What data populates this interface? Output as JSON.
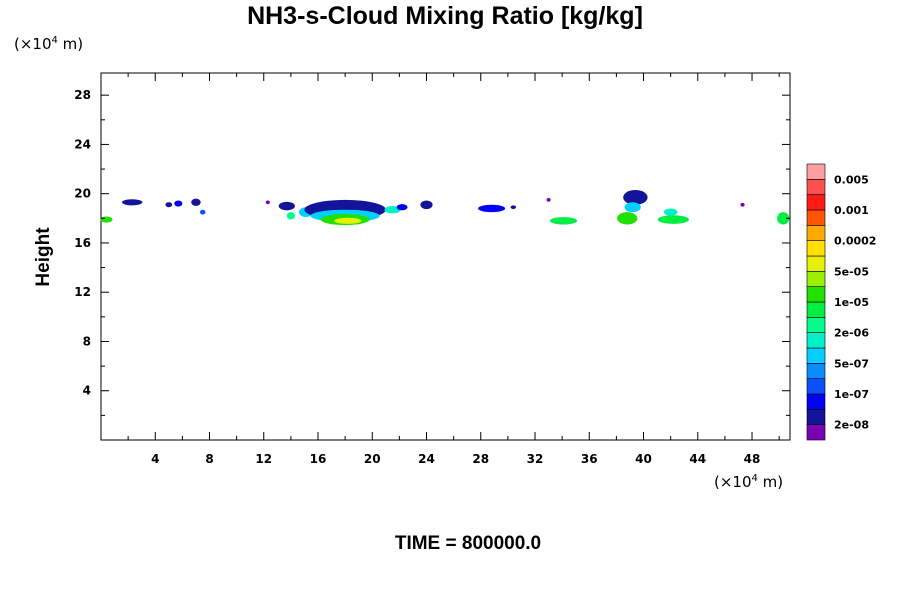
{
  "chart_data": {
    "type": "heatmap",
    "title": "NH3-s-Cloud Mixing Ratio [kg/kg]",
    "xlabel": "",
    "ylabel": "Height",
    "x_unit": {
      "prefix": "(×10",
      "exp": "4",
      "suffix": " m)"
    },
    "y_unit": {
      "prefix": "(×10",
      "exp": "4",
      "suffix": " m)"
    },
    "xlim": [
      0,
      50.8
    ],
    "ylim": [
      0,
      29.8
    ],
    "x_ticks": [
      "4",
      "8",
      "12",
      "16",
      "20",
      "24",
      "28",
      "32",
      "36",
      "40",
      "44",
      "48"
    ],
    "x_tick_values": [
      4,
      8,
      12,
      16,
      20,
      24,
      28,
      32,
      36,
      40,
      44,
      48
    ],
    "y_ticks": [
      "4",
      "8",
      "12",
      "16",
      "20",
      "24",
      "28"
    ],
    "y_tick_values": [
      4,
      8,
      12,
      16,
      20,
      24,
      28
    ],
    "footer": "TIME = 800000.0",
    "colorbar": {
      "colors": [
        "#7a00b0",
        "#14149a",
        "#0000ff",
        "#0a50ff",
        "#0a8cff",
        "#00d0ff",
        "#00f0c8",
        "#00ff8a",
        "#00ee44",
        "#22e000",
        "#9af000",
        "#e6f000",
        "#ffe000",
        "#ffaa00",
        "#ff5500",
        "#ff1a1a",
        "#ff5050",
        "#ffa0a0"
      ],
      "labels": [
        "2e-08",
        "1e-07",
        "5e-07",
        "2e-06",
        "1e-05",
        "5e-05",
        "0.0002",
        "0.001",
        "0.005"
      ]
    },
    "clouds": [
      {
        "x": 0.4,
        "y": 17.9,
        "w": 0.9,
        "h": 0.5,
        "level": 9
      },
      {
        "x": 2.3,
        "y": 19.3,
        "w": 1.5,
        "h": 0.5,
        "level": 1
      },
      {
        "x": 5.0,
        "y": 19.1,
        "w": 0.5,
        "h": 0.4,
        "level": 1
      },
      {
        "x": 5.7,
        "y": 19.2,
        "w": 0.6,
        "h": 0.5,
        "level": 2
      },
      {
        "x": 7.0,
        "y": 19.3,
        "w": 0.7,
        "h": 0.6,
        "level": 1
      },
      {
        "x": 7.5,
        "y": 18.5,
        "w": 0.4,
        "h": 0.4,
        "level": 3
      },
      {
        "x": 12.3,
        "y": 19.3,
        "w": 0.3,
        "h": 0.3,
        "level": 0
      },
      {
        "x": 13.7,
        "y": 19.0,
        "w": 1.2,
        "h": 0.7,
        "level": 1
      },
      {
        "x": 14.0,
        "y": 18.2,
        "w": 0.6,
        "h": 0.6,
        "level": 7
      },
      {
        "x": 15.1,
        "y": 18.5,
        "w": 1.0,
        "h": 0.8,
        "level": 5
      },
      {
        "x": 18.0,
        "y": 18.7,
        "w": 6.0,
        "h": 1.6,
        "level": 1
      },
      {
        "x": 18.0,
        "y": 18.2,
        "w": 5.1,
        "h": 1.0,
        "level": 5
      },
      {
        "x": 18.0,
        "y": 17.9,
        "w": 3.6,
        "h": 0.9,
        "level": 9
      },
      {
        "x": 18.2,
        "y": 17.8,
        "w": 2.0,
        "h": 0.5,
        "level": 11
      },
      {
        "x": 21.5,
        "y": 18.7,
        "w": 1.2,
        "h": 0.6,
        "level": 6
      },
      {
        "x": 22.2,
        "y": 18.9,
        "w": 0.8,
        "h": 0.5,
        "level": 2
      },
      {
        "x": 24.0,
        "y": 19.1,
        "w": 0.9,
        "h": 0.7,
        "level": 1
      },
      {
        "x": 28.8,
        "y": 18.8,
        "w": 2.0,
        "h": 0.6,
        "level": 2
      },
      {
        "x": 30.4,
        "y": 18.9,
        "w": 0.4,
        "h": 0.3,
        "level": 1
      },
      {
        "x": 33.0,
        "y": 19.5,
        "w": 0.3,
        "h": 0.3,
        "level": 0
      },
      {
        "x": 34.1,
        "y": 17.8,
        "w": 2.0,
        "h": 0.6,
        "level": 8
      },
      {
        "x": 39.4,
        "y": 19.7,
        "w": 1.8,
        "h": 1.2,
        "level": 1
      },
      {
        "x": 39.2,
        "y": 18.9,
        "w": 1.2,
        "h": 0.8,
        "level": 5
      },
      {
        "x": 38.8,
        "y": 18.0,
        "w": 1.5,
        "h": 1.0,
        "level": 9
      },
      {
        "x": 42.0,
        "y": 18.5,
        "w": 1.0,
        "h": 0.6,
        "level": 6
      },
      {
        "x": 42.2,
        "y": 17.9,
        "w": 2.3,
        "h": 0.7,
        "level": 8
      },
      {
        "x": 47.3,
        "y": 19.1,
        "w": 0.3,
        "h": 0.3,
        "level": 0
      },
      {
        "x": 50.3,
        "y": 18.0,
        "w": 0.9,
        "h": 1.0,
        "level": 8
      }
    ]
  }
}
